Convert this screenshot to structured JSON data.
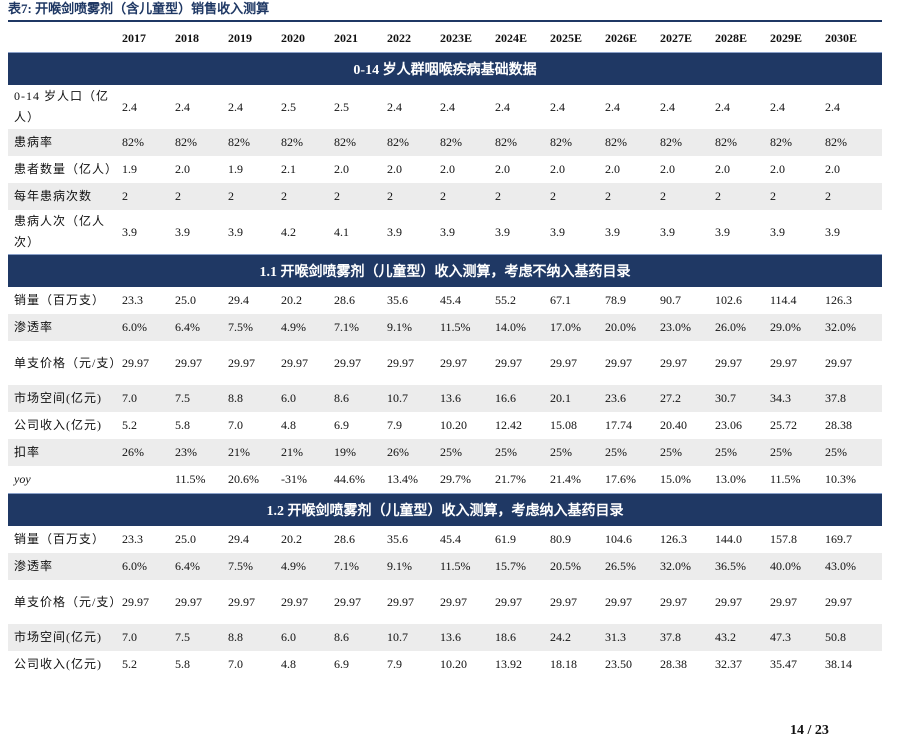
{
  "caption": "表7:  开喉剑喷雾剂（含儿童型）销售收入测算",
  "page_number": "14  /  23",
  "table": {
    "years": [
      "2017",
      "2018",
      "2019",
      "2020",
      "2021",
      "2022",
      "2023E",
      "2024E",
      "2025E",
      "2026E",
      "2027E",
      "2028E",
      "2029E",
      "2030E"
    ],
    "sections": [
      {
        "title": "0-14 岁人群咽喉疾病基础数据",
        "rows": [
          {
            "label": "0-14 岁人口（亿人）",
            "tall": true,
            "values": [
              "2.4",
              "2.4",
              "2.4",
              "2.5",
              "2.5",
              "2.4",
              "2.4",
              "2.4",
              "2.4",
              "2.4",
              "2.4",
              "2.4",
              "2.4",
              "2.4"
            ]
          },
          {
            "label": "患病率",
            "values": [
              "82%",
              "82%",
              "82%",
              "82%",
              "82%",
              "82%",
              "82%",
              "82%",
              "82%",
              "82%",
              "82%",
              "82%",
              "82%",
              "82%"
            ]
          },
          {
            "label": "患者数量（亿人）",
            "values": [
              "1.9",
              "2.0",
              "1.9",
              "2.1",
              "2.0",
              "2.0",
              "2.0",
              "2.0",
              "2.0",
              "2.0",
              "2.0",
              "2.0",
              "2.0",
              "2.0"
            ]
          },
          {
            "label": "每年患病次数",
            "values": [
              "2",
              "2",
              "2",
              "2",
              "2",
              "2",
              "2",
              "2",
              "2",
              "2",
              "2",
              "2",
              "2",
              "2"
            ]
          },
          {
            "label": "患病人次（亿人次）",
            "tall": true,
            "values": [
              "3.9",
              "3.9",
              "3.9",
              "4.2",
              "4.1",
              "3.9",
              "3.9",
              "3.9",
              "3.9",
              "3.9",
              "3.9",
              "3.9",
              "3.9",
              "3.9"
            ]
          }
        ]
      },
      {
        "title": "1.1 开喉剑喷雾剂（儿童型）收入测算，考虑不纳入基药目录",
        "rows": [
          {
            "label": "销量（百万支）",
            "values": [
              "23.3",
              "25.0",
              "29.4",
              "20.2",
              "28.6",
              "35.6",
              "45.4",
              "55.2",
              "67.1",
              "78.9",
              "90.7",
              "102.6",
              "114.4",
              "126.3"
            ]
          },
          {
            "label": "渗透率",
            "values": [
              "6.0%",
              "6.4%",
              "7.5%",
              "4.9%",
              "7.1%",
              "9.1%",
              "11.5%",
              "14.0%",
              "17.0%",
              "20.0%",
              "23.0%",
              "26.0%",
              "29.0%",
              "32.0%"
            ]
          },
          {
            "label": "单支价格（元/支）",
            "tall": true,
            "values": [
              "29.97",
              "29.97",
              "29.97",
              "29.97",
              "29.97",
              "29.97",
              "29.97",
              "29.97",
              "29.97",
              "29.97",
              "29.97",
              "29.97",
              "29.97",
              "29.97"
            ]
          },
          {
            "label": "市场空间(亿元)",
            "values": [
              "7.0",
              "7.5",
              "8.8",
              "6.0",
              "8.6",
              "10.7",
              "13.6",
              "16.6",
              "20.1",
              "23.6",
              "27.2",
              "30.7",
              "34.3",
              "37.8"
            ]
          },
          {
            "label": "公司收入(亿元)",
            "values": [
              "5.2",
              "5.8",
              "7.0",
              "4.8",
              "6.9",
              "7.9",
              "10.20",
              "12.42",
              "15.08",
              "17.74",
              "20.40",
              "23.06",
              "25.72",
              "28.38"
            ]
          },
          {
            "label": "扣率",
            "values": [
              "26%",
              "23%",
              "21%",
              "21%",
              "19%",
              "26%",
              "25%",
              "25%",
              "25%",
              "25%",
              "25%",
              "25%",
              "25%",
              "25%"
            ]
          },
          {
            "label": "yoy",
            "italic": true,
            "values": [
              "",
              "11.5%",
              "20.6%",
              "-31%",
              "44.6%",
              "13.4%",
              "29.7%",
              "21.7%",
              "21.4%",
              "17.6%",
              "15.0%",
              "13.0%",
              "11.5%",
              "10.3%"
            ]
          }
        ]
      },
      {
        "title": "1.2 开喉剑喷雾剂（儿童型）收入测算，考虑纳入基药目录",
        "rows": [
          {
            "label": "销量（百万支）",
            "values": [
              "23.3",
              "25.0",
              "29.4",
              "20.2",
              "28.6",
              "35.6",
              "45.4",
              "61.9",
              "80.9",
              "104.6",
              "126.3",
              "144.0",
              "157.8",
              "169.7"
            ]
          },
          {
            "label": "渗透率",
            "values": [
              "6.0%",
              "6.4%",
              "7.5%",
              "4.9%",
              "7.1%",
              "9.1%",
              "11.5%",
              "15.7%",
              "20.5%",
              "26.5%",
              "32.0%",
              "36.5%",
              "40.0%",
              "43.0%"
            ]
          },
          {
            "label": "单支价格（元/支）",
            "tall": true,
            "values": [
              "29.97",
              "29.97",
              "29.97",
              "29.97",
              "29.97",
              "29.97",
              "29.97",
              "29.97",
              "29.97",
              "29.97",
              "29.97",
              "29.97",
              "29.97",
              "29.97"
            ]
          },
          {
            "label": "市场空间(亿元)",
            "values": [
              "7.0",
              "7.5",
              "8.8",
              "6.0",
              "8.6",
              "10.7",
              "13.6",
              "18.6",
              "24.2",
              "31.3",
              "37.8",
              "43.2",
              "47.3",
              "50.8"
            ]
          },
          {
            "label": "公司收入(亿元)",
            "values": [
              "5.2",
              "5.8",
              "7.0",
              "4.8",
              "6.9",
              "7.9",
              "10.20",
              "13.92",
              "18.18",
              "23.50",
              "28.38",
              "32.37",
              "35.47",
              "38.14"
            ]
          }
        ]
      }
    ]
  }
}
